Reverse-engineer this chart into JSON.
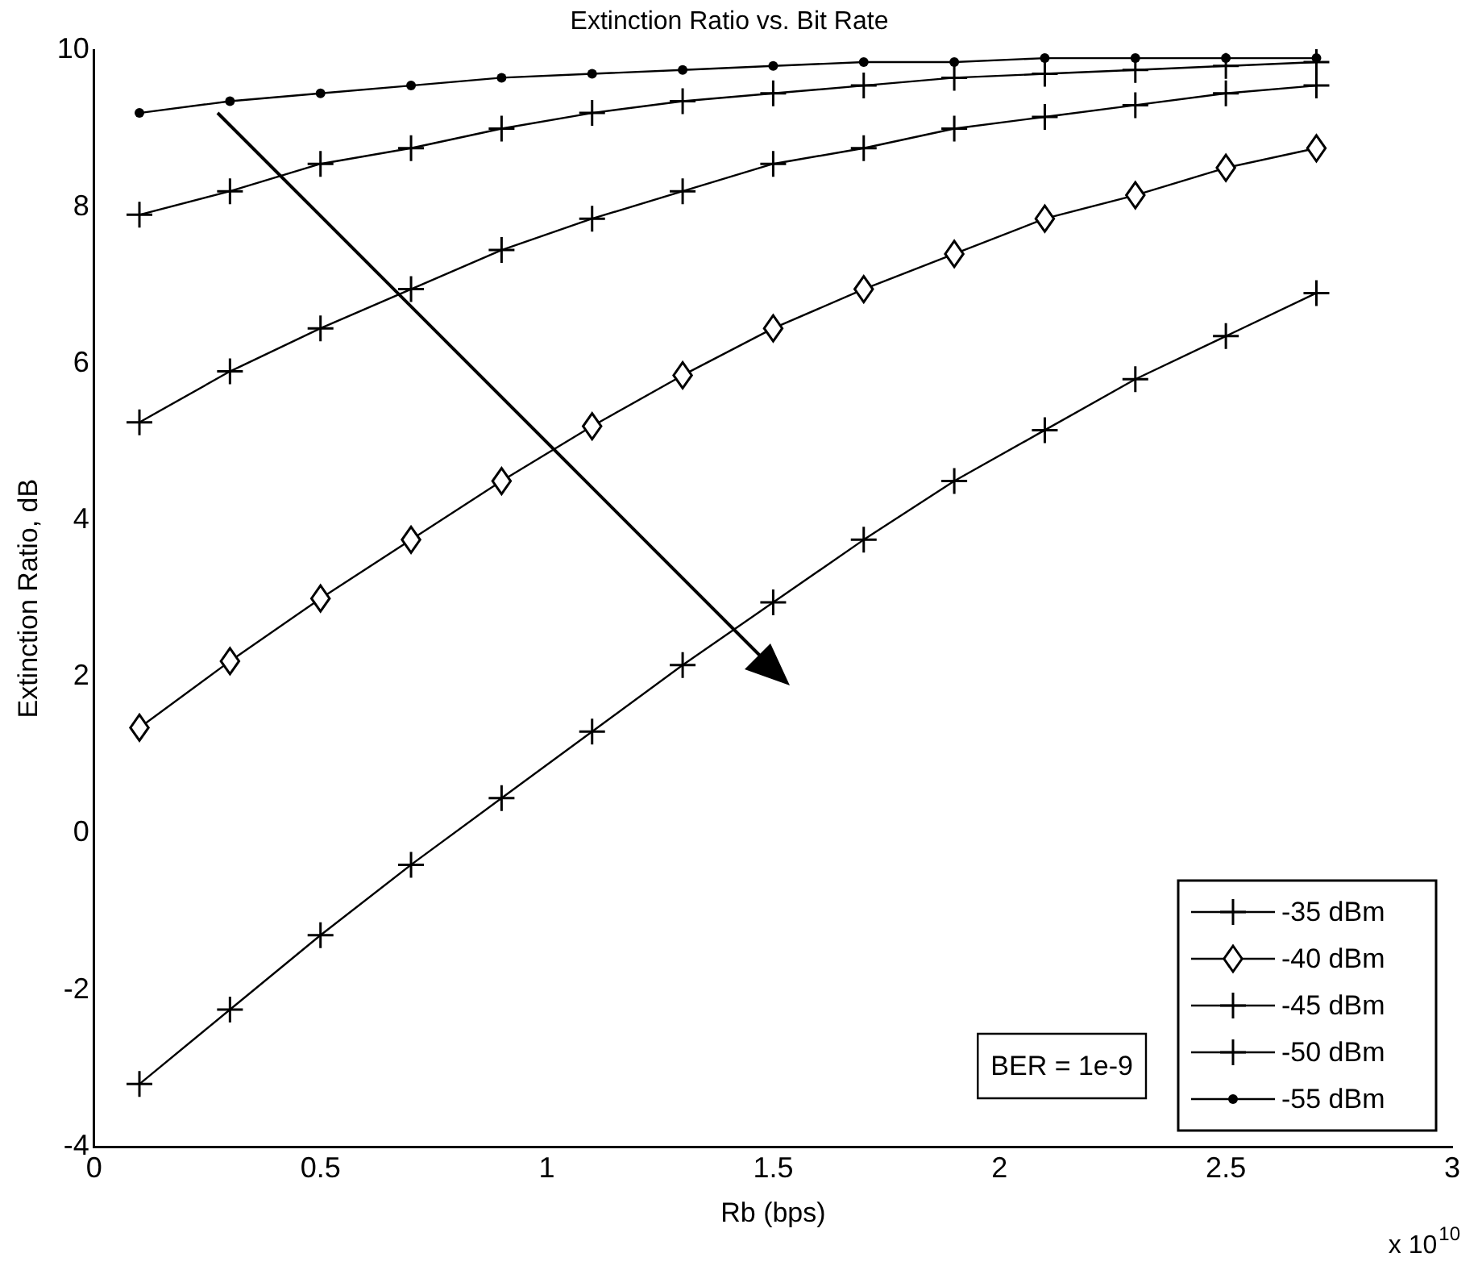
{
  "chart_data": {
    "type": "line",
    "title": "Extinction Ratio vs. Bit Rate",
    "xlabel": "Rb (bps)",
    "ylabel": "Extinction Ratio, dB",
    "x": [
      0.1,
      0.3,
      0.5,
      0.7,
      0.9,
      1.1,
      1.3,
      1.5,
      1.7,
      1.9,
      2.1,
      2.3,
      2.5,
      2.7
    ],
    "series": [
      {
        "name": "-35 dBm",
        "color": "#000000",
        "marker": "cross",
        "values": [
          -3.2,
          -2.25,
          -1.3,
          -0.4,
          0.45,
          1.3,
          2.15,
          2.95,
          3.75,
          4.5,
          5.15,
          5.8,
          6.35,
          6.9
        ]
      },
      {
        "name": "-40 dBm",
        "color": "#000000",
        "marker": "diamond",
        "values": [
          1.35,
          2.2,
          3.0,
          3.75,
          4.5,
          5.2,
          5.85,
          6.45,
          6.95,
          7.4,
          7.85,
          8.15,
          8.5,
          8.75
        ]
      },
      {
        "name": "-45 dBm",
        "color": "#000000",
        "marker": "cross",
        "values": [
          5.25,
          5.9,
          6.45,
          6.95,
          7.45,
          7.85,
          8.2,
          8.55,
          8.75,
          9.0,
          9.15,
          9.3,
          9.45,
          9.55
        ]
      },
      {
        "name": "-50 dBm",
        "color": "#000000",
        "marker": "cross",
        "values": [
          7.9,
          8.2,
          8.55,
          8.75,
          9.0,
          9.2,
          9.35,
          9.45,
          9.55,
          9.65,
          9.7,
          9.75,
          9.8,
          9.85
        ]
      },
      {
        "name": "-55 dBm",
        "color": "#000000",
        "marker": "circle",
        "values": [
          9.2,
          9.35,
          9.45,
          9.55,
          9.65,
          9.7,
          9.75,
          9.8,
          9.85,
          9.85,
          9.9,
          9.9,
          9.9,
          9.9
        ]
      }
    ],
    "xlim": [
      0,
      3
    ],
    "xticks": [
      0,
      0.5,
      1,
      1.5,
      2,
      2.5,
      3
    ],
    "ylim": [
      -4,
      10
    ],
    "yticks": [
      -4,
      -2,
      0,
      2,
      4,
      6,
      8,
      10
    ],
    "legend": "bottom right",
    "grid": false,
    "line_style": "solid",
    "annotations": [
      "BER = 1e-9",
      "x 10$^{10}$"
    ]
  }
}
